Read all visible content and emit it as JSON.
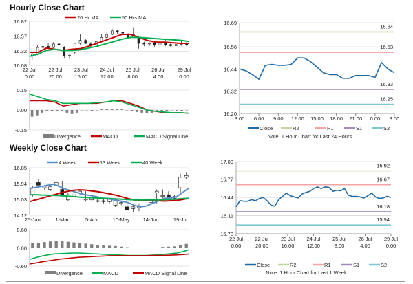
{
  "titles": {
    "hourly": "Hourly Close Chart",
    "weekly": "Weekly Close Chart"
  },
  "colors": {
    "red": "#c00000",
    "green": "#00b050",
    "blue": "#1f6aa5",
    "lightblue": "#5b8fc9",
    "r2": "#c3d69b",
    "r1": "#f2a3a3",
    "s1": "#a08cc0",
    "s2": "#7fc7d3",
    "bars": "#7f7f7f"
  },
  "chart_data": [
    {
      "id": "hourly-price",
      "type": "candlestick",
      "ylim": [
        16.08,
        16.82
      ],
      "yticks": [
        "16.82",
        "16.57",
        "16.32",
        "16.08"
      ],
      "xrange": [
        0,
        6.2
      ],
      "xticks": [
        {
          "v": 0,
          "l": [
            "22 Jul",
            "0:00"
          ]
        },
        {
          "v": 1,
          "l": [
            "22 Jul",
            "20:00"
          ]
        },
        {
          "v": 2,
          "l": [
            "23 Jul",
            "16:00"
          ]
        },
        {
          "v": 3,
          "l": [
            "24 Jul",
            "12:00"
          ]
        },
        {
          "v": 4,
          "l": [
            "25 Jul",
            "8:00"
          ]
        },
        {
          "v": 5,
          "l": [
            "26 Jul",
            "4:00"
          ]
        },
        {
          "v": 6,
          "l": [
            "29 Jul",
            "0:00"
          ]
        }
      ],
      "ohlc": [
        [
          16.25,
          16.3,
          16.18,
          16.27
        ],
        [
          16.27,
          16.42,
          16.25,
          16.38
        ],
        [
          16.38,
          16.44,
          16.34,
          16.4
        ],
        [
          16.4,
          16.45,
          16.36,
          16.38
        ],
        [
          16.38,
          16.47,
          16.37,
          16.44
        ],
        [
          16.44,
          16.48,
          16.4,
          16.43
        ],
        [
          16.38,
          16.4,
          16.2,
          16.24
        ],
        [
          16.24,
          16.28,
          16.19,
          16.25
        ],
        [
          16.3,
          16.46,
          16.28,
          16.45
        ],
        [
          16.45,
          16.6,
          16.43,
          16.5
        ],
        [
          16.5,
          16.52,
          16.44,
          16.45
        ],
        [
          16.44,
          16.47,
          16.38,
          16.42
        ],
        [
          16.42,
          16.5,
          16.4,
          16.48
        ],
        [
          16.48,
          16.6,
          16.46,
          16.55
        ],
        [
          16.55,
          16.63,
          16.5,
          16.6
        ],
        [
          16.6,
          16.7,
          16.58,
          16.66
        ],
        [
          16.66,
          16.68,
          16.6,
          16.64
        ],
        [
          16.64,
          16.66,
          16.58,
          16.62
        ],
        [
          16.6,
          16.62,
          16.52,
          16.55
        ],
        [
          16.55,
          16.72,
          16.54,
          16.6
        ],
        [
          16.55,
          16.57,
          16.36,
          16.45
        ],
        [
          16.45,
          16.48,
          16.4,
          16.44
        ],
        [
          16.44,
          16.47,
          16.4,
          16.45
        ],
        [
          16.45,
          16.48,
          16.38,
          16.42
        ],
        [
          16.42,
          16.5,
          16.4,
          16.47
        ],
        [
          16.47,
          16.52,
          16.4,
          16.43
        ],
        [
          16.43,
          16.46,
          16.38,
          16.41
        ],
        [
          16.41,
          16.45,
          16.39,
          16.43
        ],
        [
          16.43,
          16.5,
          16.41,
          16.44
        ],
        [
          16.44,
          16.47,
          16.4,
          16.43
        ]
      ],
      "series": [
        {
          "name": "20 Hr MA",
          "color": "red",
          "values": [
            16.3,
            16.3,
            16.37,
            16.35,
            16.33,
            16.35,
            16.36,
            16.4,
            16.45,
            16.5,
            16.55,
            16.6,
            16.6,
            16.55,
            16.5,
            16.47,
            16.47,
            16.46,
            16.45,
            16.45
          ]
        },
        {
          "name": "50 Hrs MA",
          "color": "green",
          "values": [
            16.23,
            16.27,
            16.33,
            16.35,
            16.33,
            16.33,
            16.34,
            16.37,
            16.4,
            16.44,
            16.48,
            16.52,
            16.55,
            16.55,
            16.54,
            16.53,
            16.52,
            16.51,
            16.5,
            16.48
          ]
        }
      ]
    },
    {
      "id": "hourly-macd",
      "type": "bar-line",
      "ylim": [
        -0.15,
        0.15
      ],
      "yticks": [
        "0.15",
        "0.00",
        "-0.15"
      ],
      "bars": {
        "name": "Divergence",
        "values": [
          -0.05,
          -0.04,
          -0.02,
          -0.01,
          -0.01,
          -0.005,
          -0.01,
          -0.02,
          -0.03,
          -0.02,
          0.0,
          0.0,
          -0.005,
          0.0,
          0.005,
          0.005,
          0.01,
          0.01,
          0.005,
          0.0,
          -0.01,
          -0.015,
          -0.02,
          -0.025,
          -0.02,
          -0.015,
          -0.01,
          -0.005,
          0.0,
          -0.005,
          -0.005,
          0.0
        ]
      },
      "series": [
        {
          "name": "MACD",
          "color": "red",
          "values": [
            0.07,
            0.07,
            0.07,
            0.06,
            0.03,
            0.04,
            0.05,
            0.05,
            0.05,
            0.06,
            0.07,
            0.07,
            0.05,
            0.03,
            0.0,
            -0.01,
            -0.02,
            -0.02,
            -0.02,
            -0.025
          ]
        },
        {
          "name": "MACD Signal Line",
          "color": "green",
          "values": [
            0.12,
            0.1,
            0.08,
            0.07,
            0.05,
            0.05,
            0.05,
            0.05,
            0.055,
            0.06,
            0.07,
            0.06,
            0.04,
            0.02,
            0.0,
            -0.01,
            -0.015,
            -0.02,
            -0.02,
            -0.025
          ]
        }
      ]
    },
    {
      "id": "hourly-24h",
      "type": "line",
      "ylim": [
        16.2,
        16.69
      ],
      "yticks": [
        "16.69",
        "16.56",
        "16.44",
        "16.32",
        "16.20"
      ],
      "xticks": [
        "3:00",
        "6:00",
        "9:00",
        "12:00",
        "15:00",
        "18:00",
        "21:00",
        "0:00",
        "3:00"
      ],
      "series": [
        {
          "name": "Close",
          "color": "blue",
          "values": [
            16.44,
            16.43,
            16.41,
            16.385,
            16.46,
            16.465,
            16.46,
            16.46,
            16.465,
            16.5,
            16.5,
            16.48,
            16.45,
            16.42,
            16.41,
            16.41,
            16.39,
            16.39,
            16.405,
            16.405,
            16.405,
            16.395,
            16.475,
            16.44,
            16.42
          ]
        }
      ],
      "levels": [
        {
          "name": "R2",
          "value": 16.64,
          "label": "16.64",
          "color": "r2"
        },
        {
          "name": "R1",
          "value": 16.53,
          "label": "16.53",
          "color": "r1"
        },
        {
          "name": "S1",
          "value": 16.33,
          "label": "16.33",
          "color": "s1"
        },
        {
          "name": "S2",
          "value": 16.25,
          "label": "16.25",
          "color": "s2"
        }
      ],
      "note": "Note: 1 Hour Chart for Last 24 Hours"
    },
    {
      "id": "weekly-price",
      "type": "candlestick",
      "ylim": [
        14.12,
        16.85
      ],
      "yticks": [
        "16.85",
        "15.94",
        "15.03",
        "14.12"
      ],
      "xrange": [
        -0.5,
        26.5
      ],
      "xticks": [
        {
          "v": 0,
          "l": [
            "25-Jan"
          ]
        },
        {
          "v": 5,
          "l": [
            "1-Mar"
          ]
        },
        {
          "v": 10,
          "l": [
            "5-Apr"
          ]
        },
        {
          "v": 15,
          "l": [
            "10-May"
          ]
        },
        {
          "v": 20,
          "l": [
            "14-Jun"
          ]
        },
        {
          "v": 25,
          "l": [
            "19-Jul"
          ]
        }
      ],
      "ohlc": [
        [
          15.3,
          15.8,
          15.2,
          15.7
        ],
        [
          16.0,
          16.2,
          15.7,
          15.85
        ],
        [
          15.7,
          15.85,
          15.6,
          15.8
        ],
        [
          15.6,
          15.85,
          15.5,
          15.75
        ],
        [
          15.8,
          16.3,
          15.6,
          16.0
        ],
        [
          15.6,
          16.1,
          15.2,
          15.3
        ],
        [
          15.0,
          15.4,
          14.95,
          15.3
        ],
        [
          15.2,
          15.35,
          15.1,
          15.3
        ],
        [
          15.4,
          15.6,
          15.3,
          15.5
        ],
        [
          15.0,
          15.5,
          14.9,
          15.05
        ],
        [
          15.0,
          15.2,
          14.9,
          15.1
        ],
        [
          14.95,
          15.2,
          14.85,
          14.95
        ],
        [
          14.9,
          15.1,
          14.8,
          14.95
        ],
        [
          14.9,
          15.1,
          14.8,
          15.1
        ],
        [
          14.7,
          15.1,
          14.6,
          15.05
        ],
        [
          14.8,
          14.95,
          14.7,
          14.85
        ],
        [
          14.6,
          14.75,
          14.4,
          14.45
        ],
        [
          14.5,
          14.7,
          14.3,
          14.6
        ],
        [
          14.55,
          14.75,
          14.35,
          14.65
        ],
        [
          14.95,
          15.15,
          14.8,
          15.0
        ],
        [
          14.85,
          15.1,
          14.8,
          14.95
        ],
        [
          15.4,
          15.6,
          14.8,
          15.5
        ],
        [
          15.2,
          15.6,
          15.1,
          15.25
        ],
        [
          15.3,
          15.5,
          15.0,
          15.15
        ],
        [
          15.1,
          15.3,
          15.0,
          15.2
        ],
        [
          15.7,
          16.5,
          15.3,
          16.3
        ],
        [
          16.3,
          16.6,
          16.2,
          16.4
        ]
      ],
      "series": [
        {
          "name": "4 Week",
          "color": "lightblue",
          "values": [
            15.65,
            15.72,
            15.78,
            15.85,
            15.9,
            15.75,
            15.6,
            15.5,
            15.4,
            15.3,
            15.25,
            15.18,
            15.1,
            15.05,
            14.98,
            14.92,
            14.85,
            14.7,
            14.6,
            14.65,
            14.8,
            14.95,
            15.1,
            15.1,
            15.2,
            15.45,
            15.7
          ]
        },
        {
          "name": "13 Week",
          "color": "red",
          "values": [
            14.9,
            15.0,
            15.1,
            15.2,
            15.3,
            15.4,
            15.48,
            15.55,
            15.58,
            15.57,
            15.52,
            15.48,
            15.42,
            15.35,
            15.28,
            15.18,
            15.08,
            15.0,
            14.97,
            14.95,
            14.95,
            14.95,
            14.93,
            14.95,
            14.97,
            15.03,
            15.1
          ]
        },
        {
          "name": "40 Week",
          "color": "green",
          "values": [
            15.3,
            15.3,
            15.28,
            15.27,
            15.26,
            15.25,
            15.22,
            15.2,
            15.17,
            15.15,
            15.13,
            15.11,
            15.1,
            15.08,
            15.06,
            15.04,
            15.02,
            15.0,
            15.0,
            15.0,
            15.0,
            15.0,
            15.02,
            15.03,
            15.05,
            15.08,
            15.1
          ]
        }
      ]
    },
    {
      "id": "weekly-macd",
      "type": "bar-line",
      "ylim": [
        -0.6,
        0.6
      ],
      "yticks": [
        "0.60",
        "0.00",
        "-0.60"
      ],
      "bars": {
        "name": "Divergence",
        "values": [
          0.15,
          0.17,
          0.19,
          0.21,
          0.23,
          0.22,
          0.2,
          0.18,
          0.16,
          0.14,
          0.12,
          0.1,
          0.08,
          0.07,
          0.06,
          0.04,
          0.02,
          0.01,
          0.005,
          0.005,
          -0.01,
          0.01,
          0.03,
          0.04,
          0.05,
          0.1,
          0.13
        ]
      },
      "series": [
        {
          "name": "MACD",
          "color": "green",
          "values": [
            -0.38,
            -0.32,
            -0.27,
            -0.23,
            -0.2,
            -0.19,
            -0.18,
            -0.17,
            -0.17,
            -0.18,
            -0.19,
            -0.2,
            -0.21,
            -0.22,
            -0.23,
            -0.24,
            -0.25,
            -0.25,
            -0.25,
            -0.25,
            -0.24,
            -0.23,
            -0.21,
            -0.19,
            -0.17,
            -0.12,
            -0.06
          ]
        },
        {
          "name": "MACD Signal Line",
          "color": "red",
          "values": [
            -0.53,
            -0.5,
            -0.46,
            -0.43,
            -0.4,
            -0.37,
            -0.35,
            -0.33,
            -0.31,
            -0.3,
            -0.29,
            -0.28,
            -0.27,
            -0.26,
            -0.26,
            -0.26,
            -0.26,
            -0.26,
            -0.26,
            -0.26,
            -0.25,
            -0.25,
            -0.25,
            -0.24,
            -0.23,
            -0.22,
            -0.2
          ]
        }
      ]
    },
    {
      "id": "weekly-1w",
      "type": "line",
      "ylim": [
        15.78,
        17.09
      ],
      "yticks": [
        "17.09",
        "16.77",
        "16.44",
        "16.11",
        "15.78"
      ],
      "xticks": [
        [
          "22 Jul",
          "0:00"
        ],
        [
          "22 Jul",
          "20:00"
        ],
        [
          "23 Jul",
          "16:00"
        ],
        [
          "24 Jul",
          "12:00"
        ],
        [
          "25 Jul",
          "8:00"
        ],
        [
          "26 Jul",
          "4:00"
        ],
        [
          "29 Jul",
          "0:00"
        ]
      ],
      "series": [
        {
          "name": "Close",
          "color": "blue",
          "values": [
            16.27,
            16.38,
            16.37,
            16.37,
            16.4,
            16.38,
            16.42,
            16.44,
            16.38,
            16.3,
            16.28,
            16.4,
            16.46,
            16.52,
            16.47,
            16.45,
            16.43,
            16.5,
            16.53,
            16.55,
            16.6,
            16.63,
            16.6,
            16.63,
            16.62,
            16.55,
            16.57,
            16.56,
            16.6,
            16.48,
            16.46,
            16.46,
            16.45,
            16.43,
            16.47,
            16.52,
            16.45,
            16.42,
            16.43,
            16.46,
            16.44
          ]
        }
      ],
      "levels": [
        {
          "name": "R2",
          "value": 16.92,
          "label": "16.92",
          "color": "r2"
        },
        {
          "name": "R1",
          "value": 16.67,
          "label": "16.67",
          "color": "r1"
        },
        {
          "name": "S1",
          "value": 16.18,
          "label": "16.18",
          "color": "s1"
        },
        {
          "name": "S2",
          "value": 15.94,
          "label": "15.94",
          "color": "s2"
        }
      ],
      "note": "Note: 1 Hour Chart for Last 1 Week"
    }
  ]
}
